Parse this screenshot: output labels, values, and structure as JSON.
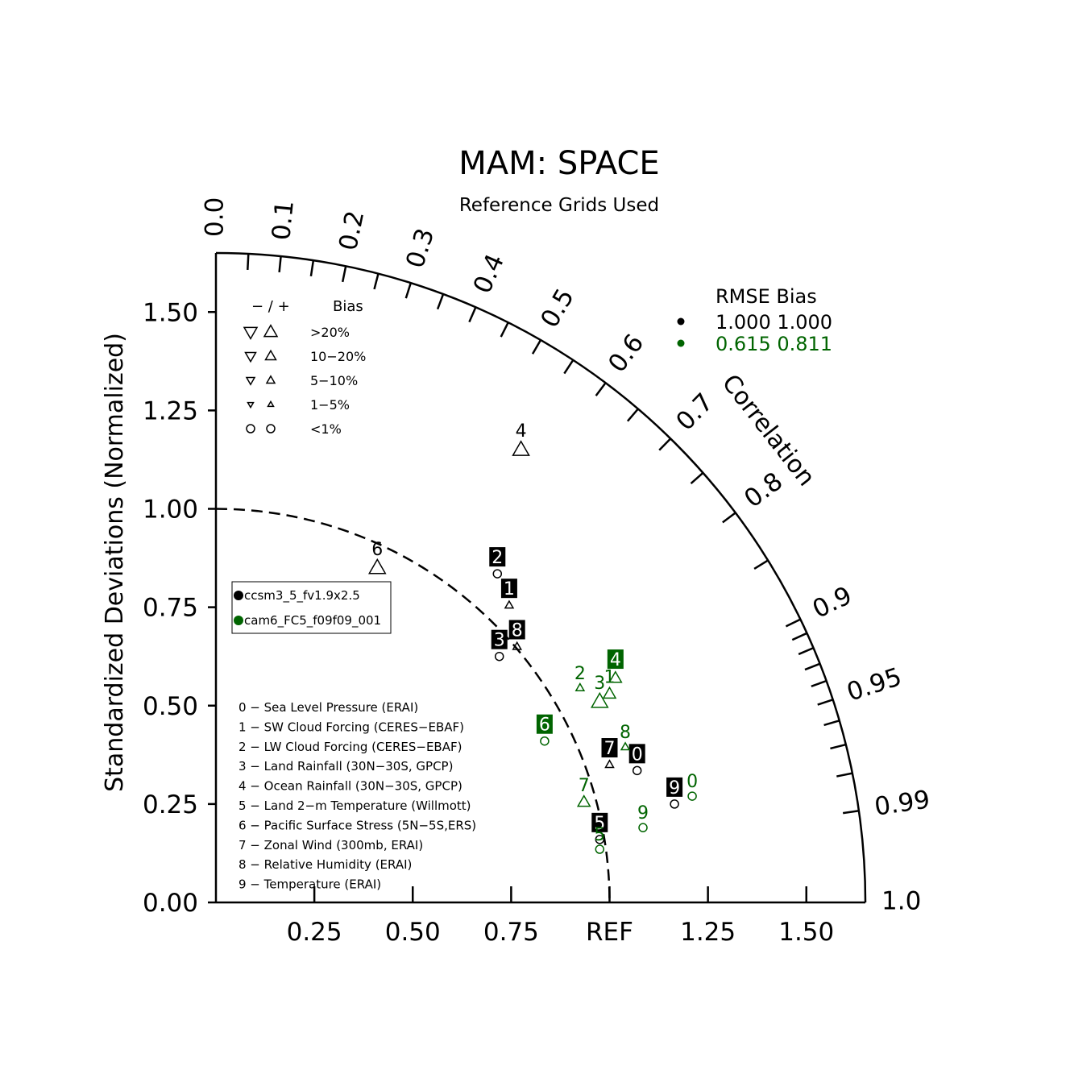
{
  "chart_data": {
    "type": "scatter",
    "title": "MAM: SPACE",
    "subtitle": "Reference Grids Used",
    "ylabel": "Standardized Deviations (Normalized)",
    "arc_label": "Correlation",
    "ref_label": "REF",
    "rlim": [
      0,
      1.65
    ],
    "y_ticks": [
      {
        "v": 0,
        "label": "0.00"
      },
      {
        "v": 0.25,
        "label": "0.25"
      },
      {
        "v": 0.5,
        "label": "0.50"
      },
      {
        "v": 0.75,
        "label": "0.75"
      },
      {
        "v": 1.0,
        "label": "1.00"
      },
      {
        "v": 1.25,
        "label": "1.25"
      },
      {
        "v": 1.5,
        "label": "1.50"
      }
    ],
    "x_ticks": [
      {
        "v": 0.25,
        "label": "0.25"
      },
      {
        "v": 0.5,
        "label": "0.50"
      },
      {
        "v": 0.75,
        "label": "0.75"
      },
      {
        "v": 1.0,
        "label": "REF"
      },
      {
        "v": 1.25,
        "label": "1.25"
      },
      {
        "v": 1.5,
        "label": "1.50"
      }
    ],
    "corr_labels": [
      {
        "v": 0.0,
        "label": "0.0"
      },
      {
        "v": 0.1,
        "label": "0.1"
      },
      {
        "v": 0.2,
        "label": "0.2"
      },
      {
        "v": 0.3,
        "label": "0.3"
      },
      {
        "v": 0.4,
        "label": "0.4"
      },
      {
        "v": 0.5,
        "label": "0.5"
      },
      {
        "v": 0.6,
        "label": "0.6"
      },
      {
        "v": 0.7,
        "label": "0.7"
      },
      {
        "v": 0.8,
        "label": "0.8"
      },
      {
        "v": 0.9,
        "label": "0.9"
      },
      {
        "v": 0.95,
        "label": "0.95"
      },
      {
        "v": 0.99,
        "label": "0.99"
      },
      {
        "v": 1.0,
        "label": "1.0"
      }
    ],
    "corr_ticks": [
      0.05,
      0.1,
      0.15,
      0.2,
      0.25,
      0.3,
      0.35,
      0.4,
      0.45,
      0.5,
      0.55,
      0.6,
      0.65,
      0.7,
      0.75,
      0.8,
      0.85,
      0.9,
      0.91,
      0.92,
      0.93,
      0.94,
      0.95,
      0.96,
      0.97,
      0.98,
      0.99
    ],
    "ref_arc_radius": 1.0,
    "series": [
      {
        "name": "ccsm3_5_fv1.9x2.5",
        "color": "#000000",
        "points": [
          {
            "id": "0",
            "x": 1.07,
            "y": 0.335,
            "marker": "circle",
            "size": "small",
            "label_box": true
          },
          {
            "id": "1",
            "x": 0.745,
            "y": 0.755,
            "marker": "up",
            "size": "small",
            "label_box": true
          },
          {
            "id": "2",
            "x": 0.715,
            "y": 0.835,
            "marker": "circle",
            "size": "small",
            "label_box": true
          },
          {
            "id": "3",
            "x": 0.72,
            "y": 0.625,
            "marker": "circle",
            "size": "small",
            "label_box": true
          },
          {
            "id": "4",
            "x": 0.775,
            "y": 1.15,
            "marker": "up",
            "size": "large",
            "label_box": false
          },
          {
            "id": "5",
            "x": 0.975,
            "y": 0.16,
            "marker": "circle",
            "size": "small",
            "label_box": true
          },
          {
            "id": "6",
            "x": 0.41,
            "y": 0.85,
            "marker": "up",
            "size": "large",
            "label_box": false
          },
          {
            "id": "7",
            "x": 1.0,
            "y": 0.35,
            "marker": "up",
            "size": "small",
            "label_box": true
          },
          {
            "id": "8",
            "x": 0.765,
            "y": 0.65,
            "marker": "up",
            "size": "small",
            "label_box": true
          },
          {
            "id": "9",
            "x": 1.165,
            "y": 0.25,
            "marker": "circle",
            "size": "small",
            "label_box": true
          }
        ]
      },
      {
        "name": "cam6_FC5_f09f09_001",
        "color": "#006400",
        "points": [
          {
            "id": "0",
            "x": 1.21,
            "y": 0.27,
            "marker": "circle",
            "size": "small",
            "label_box": false
          },
          {
            "id": "1",
            "x": 1.0,
            "y": 0.53,
            "marker": "up",
            "size": "medium",
            "label_box": false
          },
          {
            "id": "2",
            "x": 0.925,
            "y": 0.545,
            "marker": "up",
            "size": "small",
            "label_box": false
          },
          {
            "id": "3",
            "x": 0.975,
            "y": 0.51,
            "marker": "up",
            "size": "large",
            "label_box": false
          },
          {
            "id": "4",
            "x": 1.015,
            "y": 0.57,
            "marker": "up",
            "size": "medium",
            "label_box": true
          },
          {
            "id": "5",
            "x": 0.975,
            "y": 0.135,
            "marker": "circle",
            "size": "small",
            "label_box": false
          },
          {
            "id": "6",
            "x": 0.835,
            "y": 0.41,
            "marker": "circle",
            "size": "small",
            "label_box": true
          },
          {
            "id": "7",
            "x": 0.935,
            "y": 0.255,
            "marker": "up",
            "size": "medium",
            "label_box": false
          },
          {
            "id": "8",
            "x": 1.04,
            "y": 0.395,
            "marker": "up",
            "size": "small",
            "label_box": false
          },
          {
            "id": "9",
            "x": 1.085,
            "y": 0.19,
            "marker": "circle",
            "size": "small",
            "label_box": false
          }
        ]
      }
    ],
    "bias_legend": {
      "header_sign": "− / +",
      "header_bias": "Bias",
      "rows": [
        ">20%",
        "10−20%",
        "5−10%",
        "1−5%",
        "<1%"
      ]
    },
    "stats_legend": {
      "header": "RMSE  Bias",
      "rows": [
        {
          "color": "#000000",
          "text": "1.000 1.000"
        },
        {
          "color": "#006400",
          "text": "0.615 0.811"
        }
      ]
    },
    "case_legend": [
      {
        "color": "#000000",
        "label": "ccsm3_5_fv1.9x2.5"
      },
      {
        "color": "#006400",
        "label": "cam6_FC5_f09f09_001"
      }
    ],
    "variable_list": [
      "0 − Sea Level Pressure (ERAI)",
      "1 − SW Cloud Forcing (CERES−EBAF)",
      "2 − LW Cloud Forcing (CERES−EBAF)",
      "3 − Land Rainfall (30N−30S, GPCP)",
      "4 − Ocean Rainfall (30N−30S, GPCP)",
      "5 − Land 2−m Temperature (Willmott)",
      "6 − Pacific Surface Stress (5N−5S,ERS)",
      "7 − Zonal Wind (300mb, ERAI)",
      "8 − Relative Humidity (ERAI)",
      "9 − Temperature (ERAI)"
    ]
  }
}
